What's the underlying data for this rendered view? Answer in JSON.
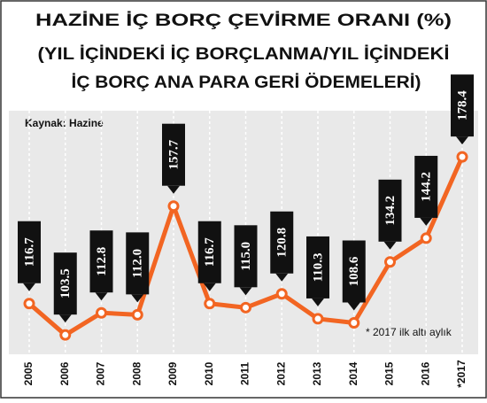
{
  "chart_data": {
    "type": "line",
    "title": [
      "HAZİNE İÇ BORÇ ÇEVİRME ORANI (%)",
      "(YIL İÇİNDEKİ İÇ BORÇLANMA/YIL İÇİNDEKİ",
      "İÇ BORÇ ANA PARA GERİ ÖDEMELERİ)"
    ],
    "source": "Kaynak: Hazine",
    "note": "* 2017 ilk altı aylık",
    "categories": [
      "2005",
      "2006",
      "2007",
      "2008",
      "2009",
      "2010",
      "2011",
      "2012",
      "2013",
      "2014",
      "2015",
      "2016",
      "*2017"
    ],
    "values": [
      116.7,
      103.5,
      112.8,
      112.0,
      157.7,
      116.7,
      115.0,
      120.8,
      110.3,
      108.6,
      134.2,
      144.2,
      178.4
    ],
    "value_labels": [
      "116.7",
      "103.5",
      "112.8",
      "112.0",
      "157.7",
      "116.7",
      "115.0",
      "120.8",
      "110.3",
      "108.6",
      "134.2",
      "144.2",
      "178.4"
    ],
    "color": "#f26522",
    "ylim": [
      95,
      190
    ]
  }
}
